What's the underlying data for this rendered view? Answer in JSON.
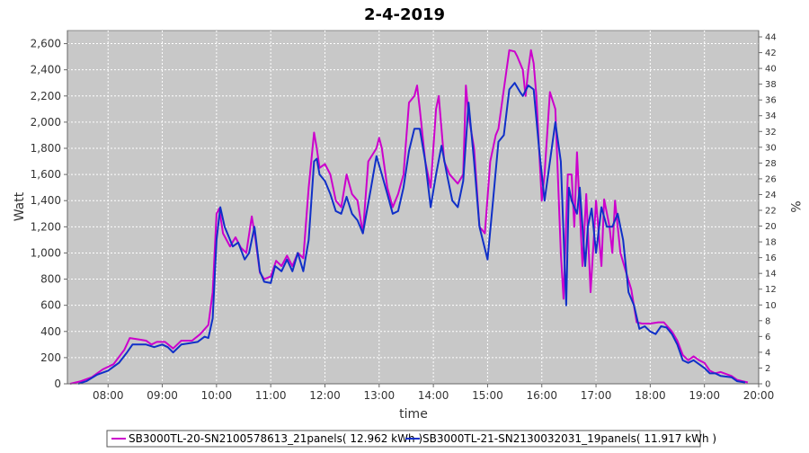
{
  "chart_data": {
    "type": "line",
    "title": "2-4-2019",
    "xlabel": "time",
    "ylabel": "Watt",
    "y2label": "%",
    "xlim": [
      7.25,
      20.0
    ],
    "ylim": [
      0,
      2700
    ],
    "y2lim": [
      0,
      44.8
    ],
    "x_ticks": [
      8,
      9,
      10,
      11,
      12,
      13,
      14,
      15,
      16,
      17,
      18,
      19,
      20
    ],
    "x_tick_labels": [
      "08:00",
      "09:00",
      "10:00",
      "11:00",
      "12:00",
      "13:00",
      "14:00",
      "15:00",
      "16:00",
      "17:00",
      "18:00",
      "19:00",
      "20:00"
    ],
    "y_ticks": [
      0,
      200,
      400,
      600,
      800,
      1000,
      1200,
      1400,
      1600,
      1800,
      2000,
      2200,
      2400,
      2600
    ],
    "y_tick_labels": [
      "0",
      "200",
      "400",
      "600",
      "800",
      "1,000",
      "1,200",
      "1,400",
      "1,600",
      "1,800",
      "2,000",
      "2,200",
      "2,400",
      "2,600"
    ],
    "y2_ticks": [
      0,
      2,
      4,
      6,
      8,
      10,
      12,
      14,
      16,
      18,
      20,
      22,
      24,
      26,
      28,
      30,
      32,
      34,
      36,
      38,
      40,
      42,
      44
    ],
    "grid": true,
    "legend_position": "bottom",
    "series": [
      {
        "name": "SB3000TL-20-SN2100578613_21panels( 12.962 kWh )",
        "color": "#cc00cc",
        "points": [
          [
            7.3,
            0
          ],
          [
            7.5,
            20
          ],
          [
            7.7,
            50
          ],
          [
            7.9,
            110
          ],
          [
            8.1,
            150
          ],
          [
            8.3,
            260
          ],
          [
            8.4,
            350
          ],
          [
            8.55,
            340
          ],
          [
            8.7,
            330
          ],
          [
            8.8,
            300
          ],
          [
            8.9,
            320
          ],
          [
            9.05,
            320
          ],
          [
            9.2,
            270
          ],
          [
            9.35,
            330
          ],
          [
            9.55,
            330
          ],
          [
            9.7,
            380
          ],
          [
            9.85,
            450
          ],
          [
            9.93,
            700
          ],
          [
            10.0,
            1300
          ],
          [
            10.05,
            1340
          ],
          [
            10.12,
            1150
          ],
          [
            10.25,
            1050
          ],
          [
            10.35,
            1120
          ],
          [
            10.45,
            1040
          ],
          [
            10.55,
            1000
          ],
          [
            10.65,
            1280
          ],
          [
            10.72,
            1100
          ],
          [
            10.8,
            850
          ],
          [
            10.88,
            800
          ],
          [
            11.0,
            820
          ],
          [
            11.1,
            940
          ],
          [
            11.2,
            900
          ],
          [
            11.3,
            980
          ],
          [
            11.4,
            900
          ],
          [
            11.5,
            1000
          ],
          [
            11.6,
            960
          ],
          [
            11.7,
            1500
          ],
          [
            11.8,
            1920
          ],
          [
            11.85,
            1800
          ],
          [
            11.9,
            1650
          ],
          [
            12.0,
            1680
          ],
          [
            12.1,
            1600
          ],
          [
            12.2,
            1400
          ],
          [
            12.3,
            1350
          ],
          [
            12.4,
            1600
          ],
          [
            12.5,
            1450
          ],
          [
            12.6,
            1400
          ],
          [
            12.7,
            1150
          ],
          [
            12.8,
            1700
          ],
          [
            12.95,
            1800
          ],
          [
            13.0,
            1880
          ],
          [
            13.05,
            1800
          ],
          [
            13.15,
            1500
          ],
          [
            13.25,
            1350
          ],
          [
            13.35,
            1450
          ],
          [
            13.45,
            1600
          ],
          [
            13.55,
            2150
          ],
          [
            13.65,
            2200
          ],
          [
            13.7,
            2280
          ],
          [
            13.75,
            2100
          ],
          [
            13.85,
            1700
          ],
          [
            13.95,
            1500
          ],
          [
            14.05,
            2100
          ],
          [
            14.1,
            2200
          ],
          [
            14.2,
            1700
          ],
          [
            14.3,
            1600
          ],
          [
            14.45,
            1530
          ],
          [
            14.55,
            1600
          ],
          [
            14.6,
            2280
          ],
          [
            14.65,
            2050
          ],
          [
            14.75,
            1800
          ],
          [
            14.85,
            1200
          ],
          [
            14.95,
            1150
          ],
          [
            15.05,
            1700
          ],
          [
            15.15,
            1900
          ],
          [
            15.2,
            1950
          ],
          [
            15.3,
            2250
          ],
          [
            15.4,
            2550
          ],
          [
            15.5,
            2540
          ],
          [
            15.55,
            2500
          ],
          [
            15.65,
            2400
          ],
          [
            15.7,
            2200
          ],
          [
            15.75,
            2400
          ],
          [
            15.8,
            2550
          ],
          [
            15.85,
            2450
          ],
          [
            15.9,
            2200
          ],
          [
            16.0,
            1400
          ],
          [
            16.05,
            1600
          ],
          [
            16.15,
            2230
          ],
          [
            16.25,
            2100
          ],
          [
            16.35,
            1000
          ],
          [
            16.4,
            650
          ],
          [
            16.48,
            1600
          ],
          [
            16.55,
            1600
          ],
          [
            16.6,
            1200
          ],
          [
            16.65,
            1770
          ],
          [
            16.75,
            900
          ],
          [
            16.82,
            1450
          ],
          [
            16.9,
            700
          ],
          [
            17.0,
            1400
          ],
          [
            17.1,
            900
          ],
          [
            17.15,
            1410
          ],
          [
            17.25,
            1200
          ],
          [
            17.3,
            1000
          ],
          [
            17.35,
            1400
          ],
          [
            17.45,
            1000
          ],
          [
            17.55,
            860
          ],
          [
            17.65,
            720
          ],
          [
            17.75,
            470
          ],
          [
            17.85,
            460
          ],
          [
            18.0,
            460
          ],
          [
            18.15,
            470
          ],
          [
            18.25,
            470
          ],
          [
            18.4,
            400
          ],
          [
            18.5,
            330
          ],
          [
            18.6,
            220
          ],
          [
            18.7,
            180
          ],
          [
            18.8,
            210
          ],
          [
            18.9,
            180
          ],
          [
            19.0,
            160
          ],
          [
            19.1,
            100
          ],
          [
            19.2,
            80
          ],
          [
            19.3,
            90
          ],
          [
            19.5,
            60
          ],
          [
            19.6,
            30
          ],
          [
            19.7,
            20
          ],
          [
            19.8,
            10
          ]
        ]
      },
      {
        "name": "SB3000TL-21-SN2130032031_19panels( 11.917 kWh )",
        "color": "#1030c8",
        "points": [
          [
            7.45,
            0
          ],
          [
            7.6,
            20
          ],
          [
            7.8,
            70
          ],
          [
            8.0,
            100
          ],
          [
            8.2,
            160
          ],
          [
            8.35,
            240
          ],
          [
            8.45,
            300
          ],
          [
            8.6,
            300
          ],
          [
            8.7,
            300
          ],
          [
            8.85,
            280
          ],
          [
            9.0,
            300
          ],
          [
            9.1,
            280
          ],
          [
            9.2,
            240
          ],
          [
            9.35,
            300
          ],
          [
            9.5,
            310
          ],
          [
            9.65,
            320
          ],
          [
            9.78,
            360
          ],
          [
            9.85,
            350
          ],
          [
            9.93,
            500
          ],
          [
            10.0,
            1100
          ],
          [
            10.07,
            1350
          ],
          [
            10.15,
            1200
          ],
          [
            10.3,
            1050
          ],
          [
            10.4,
            1080
          ],
          [
            10.52,
            950
          ],
          [
            10.6,
            1000
          ],
          [
            10.7,
            1200
          ],
          [
            10.8,
            860
          ],
          [
            10.88,
            780
          ],
          [
            11.0,
            770
          ],
          [
            11.08,
            900
          ],
          [
            11.2,
            860
          ],
          [
            11.3,
            950
          ],
          [
            11.4,
            860
          ],
          [
            11.5,
            1000
          ],
          [
            11.6,
            860
          ],
          [
            11.7,
            1100
          ],
          [
            11.8,
            1700
          ],
          [
            11.85,
            1720
          ],
          [
            11.9,
            1600
          ],
          [
            12.0,
            1550
          ],
          [
            12.1,
            1450
          ],
          [
            12.2,
            1320
          ],
          [
            12.3,
            1300
          ],
          [
            12.4,
            1430
          ],
          [
            12.5,
            1300
          ],
          [
            12.6,
            1250
          ],
          [
            12.7,
            1150
          ],
          [
            12.85,
            1500
          ],
          [
            12.95,
            1740
          ],
          [
            13.05,
            1600
          ],
          [
            13.15,
            1450
          ],
          [
            13.25,
            1300
          ],
          [
            13.35,
            1320
          ],
          [
            13.45,
            1500
          ],
          [
            13.55,
            1780
          ],
          [
            13.65,
            1950
          ],
          [
            13.75,
            1950
          ],
          [
            13.85,
            1700
          ],
          [
            13.95,
            1350
          ],
          [
            14.05,
            1600
          ],
          [
            14.15,
            1820
          ],
          [
            14.25,
            1600
          ],
          [
            14.35,
            1400
          ],
          [
            14.45,
            1350
          ],
          [
            14.55,
            1550
          ],
          [
            14.65,
            2150
          ],
          [
            14.75,
            1700
          ],
          [
            14.85,
            1200
          ],
          [
            15.0,
            950
          ],
          [
            15.1,
            1400
          ],
          [
            15.2,
            1850
          ],
          [
            15.3,
            1900
          ],
          [
            15.4,
            2250
          ],
          [
            15.5,
            2300
          ],
          [
            15.6,
            2230
          ],
          [
            15.65,
            2200
          ],
          [
            15.75,
            2280
          ],
          [
            15.85,
            2250
          ],
          [
            15.95,
            1800
          ],
          [
            16.05,
            1400
          ],
          [
            16.15,
            1700
          ],
          [
            16.25,
            2000
          ],
          [
            16.35,
            1700
          ],
          [
            16.45,
            600
          ],
          [
            16.5,
            1500
          ],
          [
            16.55,
            1400
          ],
          [
            16.65,
            1300
          ],
          [
            16.7,
            1500
          ],
          [
            16.8,
            900
          ],
          [
            16.85,
            1200
          ],
          [
            16.92,
            1340
          ],
          [
            17.0,
            1000
          ],
          [
            17.1,
            1350
          ],
          [
            17.2,
            1200
          ],
          [
            17.3,
            1200
          ],
          [
            17.4,
            1300
          ],
          [
            17.5,
            1100
          ],
          [
            17.6,
            700
          ],
          [
            17.7,
            600
          ],
          [
            17.8,
            420
          ],
          [
            17.9,
            440
          ],
          [
            18.0,
            400
          ],
          [
            18.1,
            380
          ],
          [
            18.2,
            440
          ],
          [
            18.3,
            430
          ],
          [
            18.4,
            380
          ],
          [
            18.5,
            300
          ],
          [
            18.6,
            180
          ],
          [
            18.7,
            160
          ],
          [
            18.8,
            180
          ],
          [
            18.9,
            150
          ],
          [
            19.0,
            120
          ],
          [
            19.1,
            80
          ],
          [
            19.2,
            80
          ],
          [
            19.3,
            60
          ],
          [
            19.5,
            50
          ],
          [
            19.6,
            20
          ],
          [
            19.75,
            10
          ]
        ]
      }
    ]
  }
}
